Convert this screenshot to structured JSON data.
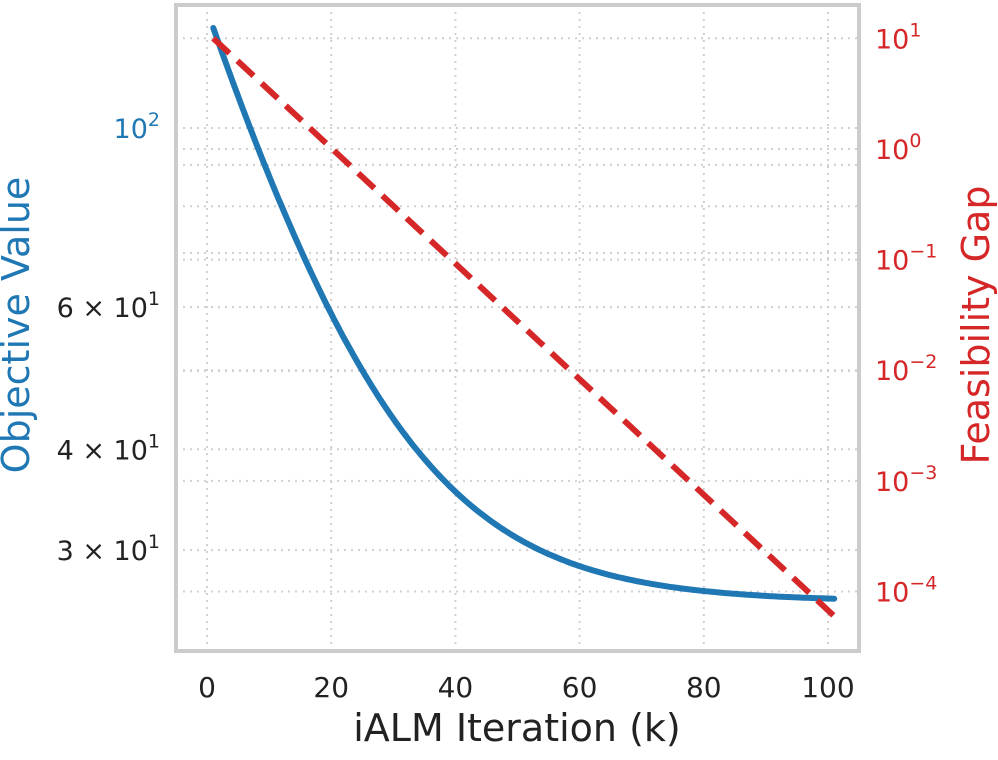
{
  "chart_data": {
    "type": "line",
    "xlabel": "iALM Iteration (k)",
    "ylabel_left": "Objective Value",
    "ylabel_right": "Feasibility Gap",
    "xlim": [
      -5,
      105
    ],
    "x_ticks": [
      0,
      20,
      40,
      60,
      80,
      100
    ],
    "x_tick_labels": [
      "0",
      "20",
      "40",
      "60",
      "80",
      "100"
    ],
    "ylim_left": [
      22.5,
      142
    ],
    "y_scale_left": "log",
    "y_ticks_left": [
      30,
      40,
      60,
      100
    ],
    "y_tick_labels_left": [
      {
        "base": "3 × 10",
        "exp": "1"
      },
      {
        "base": "4 × 10",
        "exp": "1"
      },
      {
        "base": "6 × 10",
        "exp": "1"
      },
      {
        "base": "10",
        "exp": "2"
      }
    ],
    "y_minor_ticks_left": [
      50,
      70,
      80,
      90
    ],
    "ylim_right": [
      2.9e-05,
      20
    ],
    "y_scale_right": "log",
    "y_ticks_right": [
      10,
      1,
      0.1,
      0.01,
      0.001,
      0.0001
    ],
    "y_tick_labels_right": [
      {
        "base": "10",
        "exp": "1"
      },
      {
        "base": "10",
        "exp": "0"
      },
      {
        "base": "10",
        "exp": "−1"
      },
      {
        "base": "10",
        "exp": "−2"
      },
      {
        "base": "10",
        "exp": "−3"
      },
      {
        "base": "10",
        "exp": "−4"
      }
    ],
    "grid": true,
    "series": [
      {
        "axis": "left",
        "color": "#1f77b4",
        "style": "solid",
        "objective_params": {
          "k_start": 1,
          "k_end": 101,
          "start": 133,
          "asymptote": 25.9,
          "rate": 0.062
        }
      },
      {
        "axis": "right",
        "color": "#d62728",
        "style": "dashed",
        "x": [
          1,
          101
        ],
        "values": [
          10,
          6e-05
        ]
      }
    ],
    "colors": {
      "left_axis": "#1f77b4",
      "right_axis": "#d62728",
      "frame": "#cccccc",
      "grid": "#d0d0d0",
      "tick_text": "#222222"
    }
  }
}
